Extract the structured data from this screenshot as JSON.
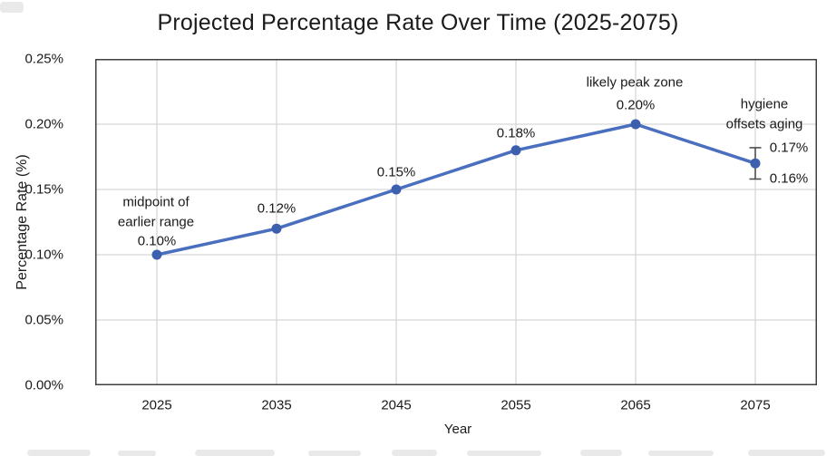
{
  "chart_data": {
    "type": "line",
    "title": "Projected Percentage Rate Over Time (2025-2075)",
    "xlabel": "Year",
    "ylabel": "Percentage Rate (%)",
    "categories": [
      "2025",
      "2035",
      "2045",
      "2055",
      "2065",
      "2075"
    ],
    "values": [
      0.1,
      0.12,
      0.15,
      0.18,
      0.2,
      0.17
    ],
    "point_labels": [
      "0.10%",
      "0.12%",
      "0.15%",
      "0.18%",
      "0.20%",
      ""
    ],
    "ylim": [
      0,
      0.25
    ],
    "ytick_labels": [
      "0.00%",
      "0.05%",
      "0.10%",
      "0.15%",
      "0.20%",
      "0.25%"
    ],
    "grid": true,
    "legend": "none",
    "error_bar": {
      "category": "2075",
      "upper": 0.182,
      "lower": 0.158,
      "upper_label": "0.17%",
      "lower_label": "0.16%"
    },
    "annotations": [
      {
        "anchor": "2025",
        "lines": [
          "midpoint of",
          "earlier range"
        ]
      },
      {
        "anchor": "2065",
        "lines": [
          "likely peak zone"
        ]
      },
      {
        "anchor": "2075",
        "lines": [
          "hygiene",
          "offsets aging"
        ]
      }
    ],
    "colors": {
      "line": "#4a6fbf",
      "marker": "#3c5fae",
      "grid": "#d7d7d7",
      "border": "#3f3f3f",
      "error_bar": "#4f4f4f",
      "text": "#1c1c1c"
    }
  }
}
